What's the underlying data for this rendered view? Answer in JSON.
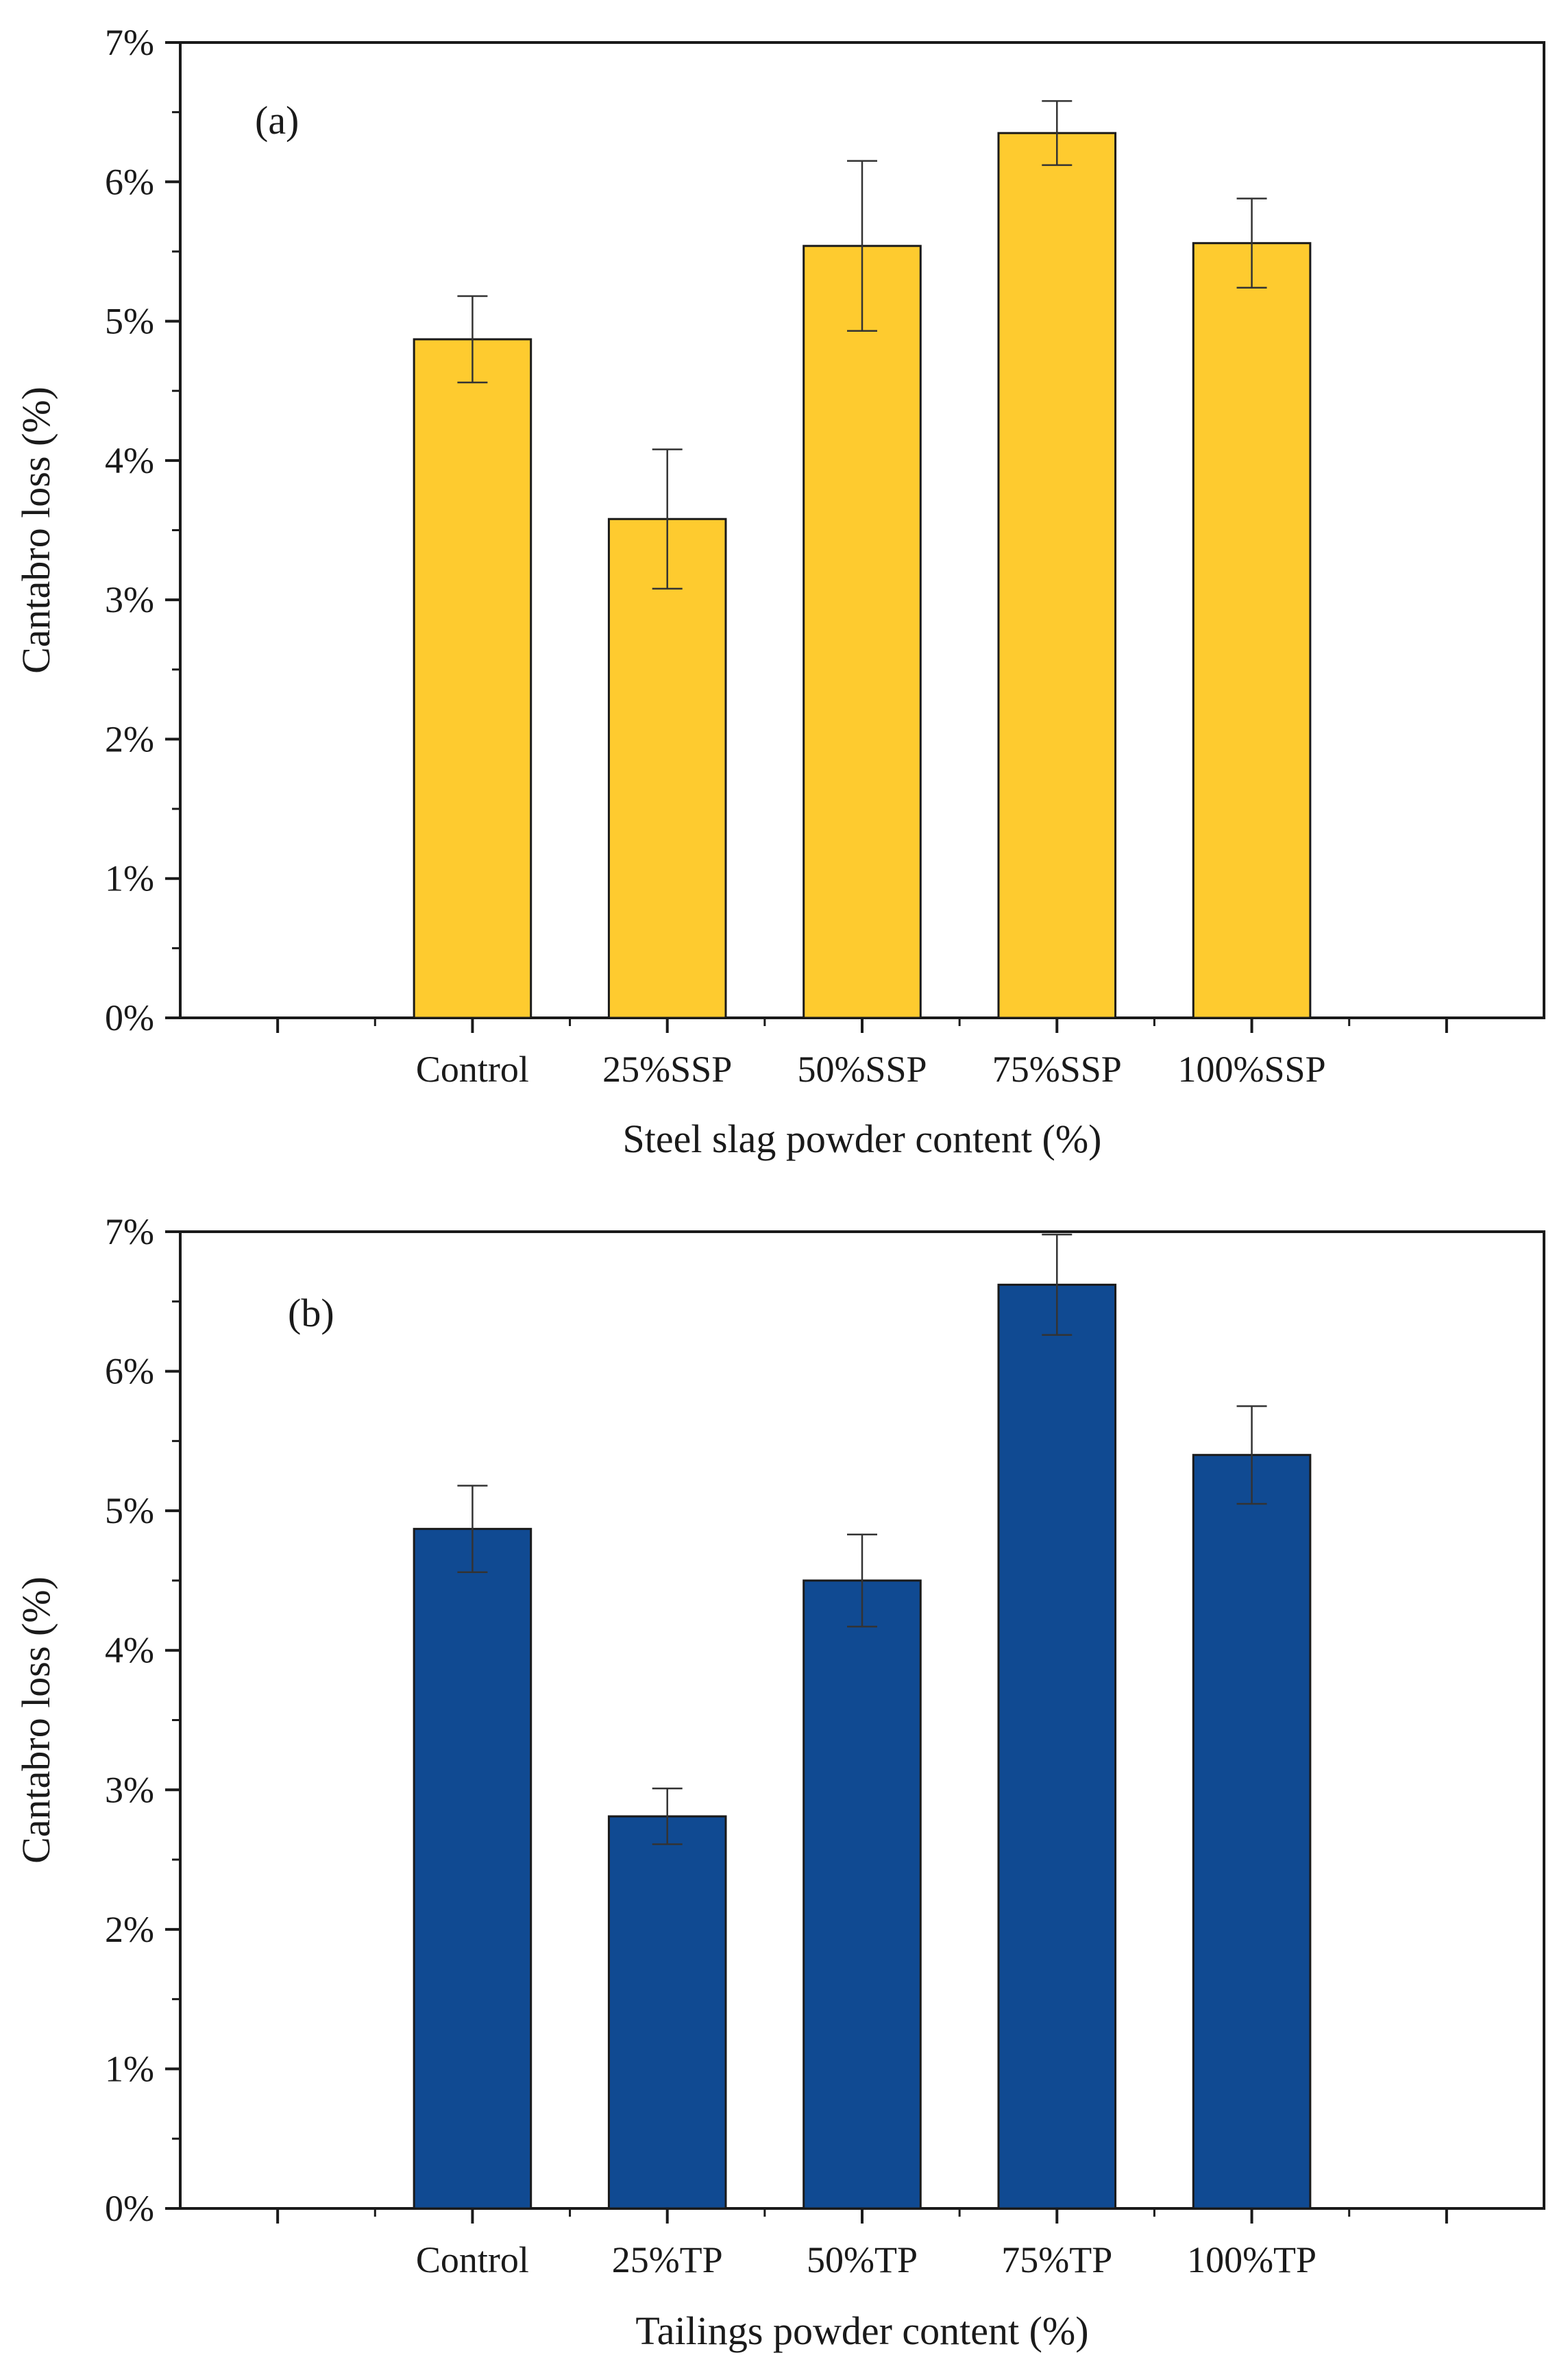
{
  "chart_data": [
    {
      "type": "bar",
      "panel_label": "(a)",
      "categories": [
        "Control",
        "25%SSP",
        "50%SSP",
        "75%SSP",
        "100%SSP"
      ],
      "values": [
        4.87,
        3.58,
        5.54,
        6.35,
        5.56
      ],
      "errors": [
        0.31,
        0.5,
        0.61,
        0.23,
        0.32
      ],
      "xlabel": "Steel slag powder content (%)",
      "ylabel": "Cantabro loss (%)",
      "ylim": [
        0,
        7
      ],
      "yticks": [
        "0%",
        "1%",
        "2%",
        "3%",
        "4%",
        "5%",
        "6%",
        "7%"
      ],
      "bar_color": "#fecb2f",
      "grid": false
    },
    {
      "type": "bar",
      "panel_label": "(b)",
      "categories": [
        "Control",
        "25%TP",
        "50%TP",
        "75%TP",
        "100%TP"
      ],
      "values": [
        4.87,
        2.81,
        4.5,
        6.62,
        5.4
      ],
      "errors": [
        0.31,
        0.2,
        0.33,
        0.36,
        0.35
      ],
      "xlabel": "Tailings powder content (%)",
      "ylabel": "Cantabro loss (%)",
      "ylim": [
        0,
        7
      ],
      "yticks": [
        "0%",
        "1%",
        "2%",
        "3%",
        "4%",
        "5%",
        "6%",
        "7%"
      ],
      "bar_color": "#104a92",
      "grid": false
    }
  ]
}
